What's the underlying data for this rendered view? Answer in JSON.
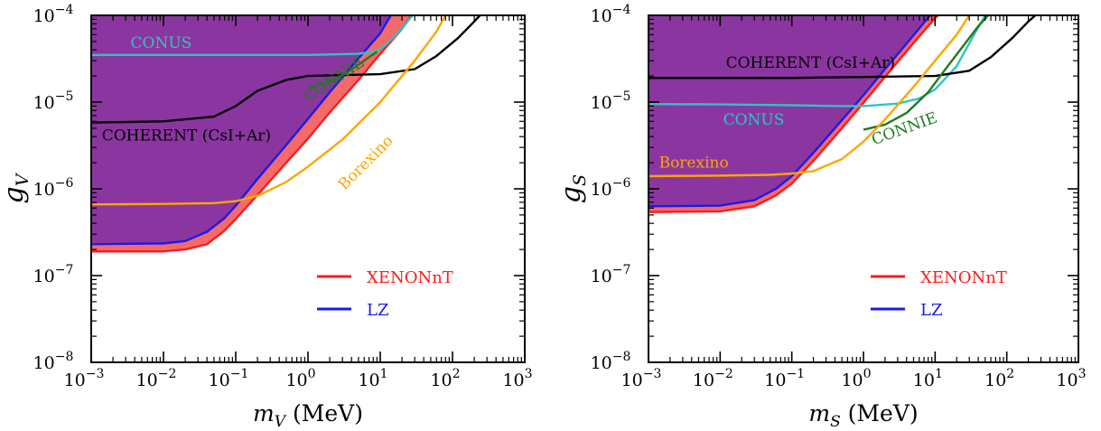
{
  "colors": {
    "excluded_region": "#8B36A0",
    "xenon": "#FF1A1A",
    "xenon_fill": "#F46A6A",
    "lz": "#1A1AE6",
    "conus": "#2EC4C4",
    "coherent": "#000000",
    "connie": "#1F7A1F",
    "borexino": "#FFA500"
  },
  "chart_data": [
    {
      "type": "line",
      "scale": {
        "x": "log",
        "y": "log"
      },
      "xlim": [
        0.001,
        1000
      ],
      "ylim": [
        1e-08,
        0.0001
      ],
      "xlabel": {
        "sym": "m",
        "sub": "V",
        "unit": " (MeV)"
      },
      "ylabel": {
        "sym": "g",
        "sub": "V"
      },
      "xticks": [
        {
          "b": "10",
          "e": "−3"
        },
        {
          "b": "10",
          "e": "−2"
        },
        {
          "b": "10",
          "e": "−1"
        },
        {
          "b": "10",
          "e": "0"
        },
        {
          "b": "10",
          "e": "1"
        },
        {
          "b": "10",
          "e": "2"
        },
        {
          "b": "10",
          "e": "3"
        }
      ],
      "yticks": [
        {
          "b": "10",
          "e": "−8"
        },
        {
          "b": "10",
          "e": "−7"
        },
        {
          "b": "10",
          "e": "−6"
        },
        {
          "b": "10",
          "e": "−5"
        },
        {
          "b": "10",
          "e": "−4"
        }
      ],
      "legend": {
        "position": "lower-right",
        "entries": [
          {
            "label": "XENONnT",
            "color_key": "xenon"
          },
          {
            "label": "LZ",
            "color_key": "lz"
          }
        ]
      },
      "series": [
        {
          "name": "XENONnT",
          "color_key": "xenon",
          "points": [
            [
              0.001,
              1.9e-07
            ],
            [
              0.01,
              1.9e-07
            ],
            [
              0.02,
              2e-07
            ],
            [
              0.04,
              2.3e-07
            ],
            [
              0.07,
              3.3e-07
            ],
            [
              0.1,
              4.5e-07
            ],
            [
              0.2,
              8.5e-07
            ],
            [
              0.5,
              2e-06
            ],
            [
              1,
              3.8e-06
            ],
            [
              2,
              7.6e-06
            ],
            [
              5,
              1.8e-05
            ],
            [
              10,
              3.6e-05
            ],
            [
              20,
              7e-05
            ],
            [
              27,
              0.0001
            ]
          ]
        },
        {
          "name": "LZ",
          "color_key": "lz",
          "points": [
            [
              0.001,
              2.3e-07
            ],
            [
              0.01,
              2.35e-07
            ],
            [
              0.02,
              2.5e-07
            ],
            [
              0.04,
              3.2e-07
            ],
            [
              0.07,
              4.6e-07
            ],
            [
              0.1,
              6.4e-07
            ],
            [
              0.2,
              1.3e-06
            ],
            [
              0.5,
              3.2e-06
            ],
            [
              1,
              6.4e-06
            ],
            [
              2,
              1.3e-05
            ],
            [
              5,
              3.2e-05
            ],
            [
              10,
              6.2e-05
            ],
            [
              14,
              0.0001
            ]
          ]
        },
        {
          "name": "CONUS",
          "color_key": "conus",
          "points": [
            [
              0.001,
              3.5e-05
            ],
            [
              0.1,
              3.5e-05
            ],
            [
              1,
              3.5e-05
            ],
            [
              5,
              3.6e-05
            ],
            [
              9,
              3.9e-05
            ],
            [
              12,
              4.6e-05
            ],
            [
              16,
              5.8e-05
            ],
            [
              22,
              7.8e-05
            ],
            [
              28,
              0.0001
            ]
          ]
        },
        {
          "name": "COHERENT (CsI+Ar)",
          "color_key": "coherent",
          "points": [
            [
              0.001,
              5.8e-06
            ],
            [
              0.01,
              6e-06
            ],
            [
              0.05,
              6.8e-06
            ],
            [
              0.1,
              9e-06
            ],
            [
              0.2,
              1.35e-05
            ],
            [
              0.5,
              1.8e-05
            ],
            [
              1,
              2e-05
            ],
            [
              3,
              2.05e-05
            ],
            [
              10,
              2.1e-05
            ],
            [
              30,
              2.4e-05
            ],
            [
              60,
              3.4e-05
            ],
            [
              120,
              5.5e-05
            ],
            [
              200,
              8.5e-05
            ],
            [
              240,
              0.0001
            ]
          ]
        },
        {
          "name": "CONNIE",
          "color_key": "connie",
          "points": [
            [
              1,
              1.45e-05
            ],
            [
              2,
              1.7e-05
            ],
            [
              3.5,
              2.2e-05
            ],
            [
              5,
              2.7e-05
            ],
            [
              7,
              3.3e-05
            ],
            [
              9,
              3.8e-05
            ]
          ]
        },
        {
          "name": "Borexino",
          "color_key": "borexino",
          "points": [
            [
              0.001,
              6.6e-07
            ],
            [
              0.01,
              6.7e-07
            ],
            [
              0.05,
              6.85e-07
            ],
            [
              0.1,
              7.2e-07
            ],
            [
              0.2,
              8.3e-07
            ],
            [
              0.5,
              1.2e-06
            ],
            [
              1,
              1.8e-06
            ],
            [
              3,
              3.7e-06
            ],
            [
              10,
              1e-05
            ],
            [
              30,
              3e-05
            ],
            [
              60,
              6.5e-05
            ],
            [
              80,
              0.0001
            ]
          ]
        }
      ],
      "annotations": [
        {
          "text": "CONUS",
          "color_key": "conus",
          "x": 0.0035,
          "y": 4.2e-05,
          "rotate": 0
        },
        {
          "text": "COHERENT (CsI+Ar)",
          "color_key": "coherent",
          "x": 0.0014,
          "y": 3.6e-06,
          "rotate": 0
        },
        {
          "text": "CONNIE",
          "color_key": "connie",
          "x": 1.0,
          "y": 1e-05,
          "rotate": -33
        },
        {
          "text": "Borexino",
          "color_key": "borexino",
          "x": 3.2,
          "y": 9.5e-07,
          "rotate": -45
        }
      ]
    },
    {
      "type": "line",
      "scale": {
        "x": "log",
        "y": "log"
      },
      "xlim": [
        0.001,
        1000
      ],
      "ylim": [
        1e-08,
        0.0001
      ],
      "xlabel": {
        "sym": "m",
        "sub": "S",
        "unit": " (MeV)"
      },
      "ylabel": {
        "sym": "g",
        "sub": "S"
      },
      "xticks": [
        {
          "b": "10",
          "e": "−3"
        },
        {
          "b": "10",
          "e": "−2"
        },
        {
          "b": "10",
          "e": "−1"
        },
        {
          "b": "10",
          "e": "0"
        },
        {
          "b": "10",
          "e": "1"
        },
        {
          "b": "10",
          "e": "2"
        },
        {
          "b": "10",
          "e": "3"
        }
      ],
      "yticks": [
        {
          "b": "10",
          "e": "−8"
        },
        {
          "b": "10",
          "e": "−7"
        },
        {
          "b": "10",
          "e": "−6"
        },
        {
          "b": "10",
          "e": "−5"
        },
        {
          "b": "10",
          "e": "−4"
        }
      ],
      "legend": {
        "position": "lower-right",
        "entries": [
          {
            "label": "XENONnT",
            "color_key": "xenon"
          },
          {
            "label": "LZ",
            "color_key": "lz"
          }
        ]
      },
      "series": [
        {
          "name": "XENONnT",
          "color_key": "xenon",
          "points": [
            [
              0.001,
              5.4e-07
            ],
            [
              0.01,
              5.5e-07
            ],
            [
              0.03,
              6.3e-07
            ],
            [
              0.06,
              8.4e-07
            ],
            [
              0.1,
              1.15e-06
            ],
            [
              0.2,
              2.1e-06
            ],
            [
              0.5,
              5e-06
            ],
            [
              1,
              9.8e-06
            ],
            [
              2,
              1.95e-05
            ],
            [
              5,
              4.8e-05
            ],
            [
              10,
              9.3e-05
            ],
            [
              11,
              0.0001
            ]
          ]
        },
        {
          "name": "LZ",
          "color_key": "lz",
          "points": [
            [
              0.001,
              6.3e-07
            ],
            [
              0.01,
              6.4e-07
            ],
            [
              0.03,
              7.4e-07
            ],
            [
              0.06,
              1e-06
            ],
            [
              0.1,
              1.4e-06
            ],
            [
              0.2,
              2.6e-06
            ],
            [
              0.5,
              6.2e-06
            ],
            [
              1,
              1.2e-05
            ],
            [
              2,
              2.4e-05
            ],
            [
              5,
              5.9e-05
            ],
            [
              8.5,
              0.0001
            ]
          ]
        },
        {
          "name": "CONUS",
          "color_key": "conus",
          "points": [
            [
              0.001,
              9.5e-06
            ],
            [
              0.01,
              9.4e-06
            ],
            [
              0.1,
              9.2e-06
            ],
            [
              0.5,
              9e-06
            ],
            [
              1,
              9e-06
            ],
            [
              3,
              9.6e-06
            ],
            [
              6,
              1.1e-05
            ],
            [
              10,
              1.4e-05
            ],
            [
              20,
              2.6e-05
            ],
            [
              35,
              6e-05
            ],
            [
              50,
              0.0001
            ]
          ]
        },
        {
          "name": "COHERENT (CsI+Ar)",
          "color_key": "coherent",
          "points": [
            [
              0.001,
              1.9e-05
            ],
            [
              0.1,
              1.9e-05
            ],
            [
              1,
              1.95e-05
            ],
            [
              10,
              2e-05
            ],
            [
              30,
              2.3e-05
            ],
            [
              60,
              3.3e-05
            ],
            [
              120,
              5.5e-05
            ],
            [
              200,
              8.5e-05
            ],
            [
              250,
              0.0001
            ]
          ]
        },
        {
          "name": "CONNIE",
          "color_key": "connie",
          "points": [
            [
              1,
              4.8e-06
            ],
            [
              2,
              5.5e-06
            ],
            [
              4,
              7.5e-06
            ],
            [
              8,
              1.3e-05
            ],
            [
              15,
              2.6e-05
            ],
            [
              25,
              4.5e-05
            ],
            [
              40,
              7.5e-05
            ],
            [
              55,
              0.0001
            ]
          ]
        },
        {
          "name": "Borexino",
          "color_key": "borexino",
          "points": [
            [
              0.001,
              1.4e-06
            ],
            [
              0.01,
              1.42e-06
            ],
            [
              0.05,
              1.45e-06
            ],
            [
              0.1,
              1.5e-06
            ],
            [
              0.2,
              1.6e-06
            ],
            [
              0.5,
              2.2e-06
            ],
            [
              1,
              3.5e-06
            ],
            [
              2,
              6.3e-06
            ],
            [
              5,
              1.5e-05
            ],
            [
              10,
              3e-05
            ],
            [
              20,
              6e-05
            ],
            [
              30,
              0.0001
            ]
          ]
        }
      ],
      "annotations": [
        {
          "text": "COHERENT (CsI+Ar)",
          "color_key": "coherent",
          "x": 0.012,
          "y": 2.5e-05,
          "rotate": 0
        },
        {
          "text": "CONUS",
          "color_key": "conus",
          "x": 0.011,
          "y": 5.5e-06,
          "rotate": 0
        },
        {
          "text": "CONNIE",
          "color_key": "connie",
          "x": 1.4,
          "y": 3.2e-06,
          "rotate": -20
        },
        {
          "text": "Borexino",
          "color_key": "borexino",
          "x": 0.0014,
          "y": 1.75e-06,
          "rotate": 0
        }
      ]
    }
  ]
}
